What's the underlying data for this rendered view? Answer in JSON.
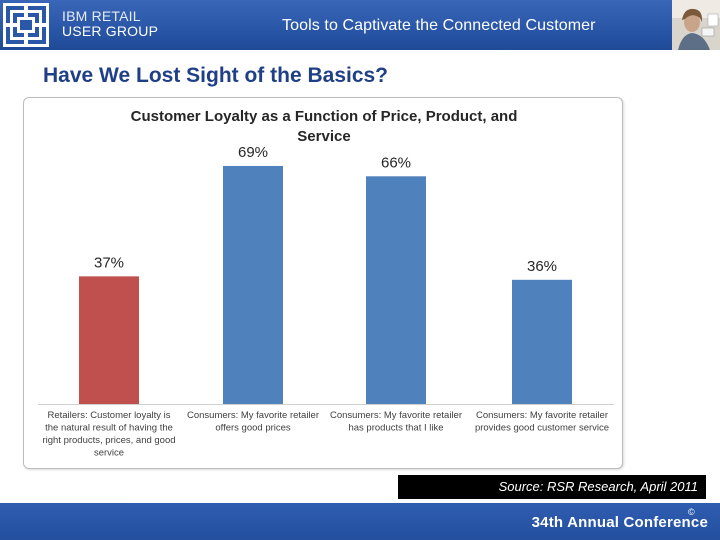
{
  "header": {
    "org_line1": "IBM RETAIL",
    "org_line2": "USER GROUP",
    "title": "Tools to Captivate the Connected Customer"
  },
  "slide": {
    "title": "Have We Lost Sight of the Basics?",
    "source": "Source: RSR Research, April 2011"
  },
  "footer": {
    "conference": "34th Annual Conference",
    "copyright_symbol": "©"
  },
  "colors": {
    "retailer_bar": "#c0504d",
    "consumer_bar": "#4f81bd",
    "title_text": "#1f3f86"
  },
  "chart_data": {
    "type": "bar",
    "title_lines": [
      "Customer Loyalty as a Function of Price, Product, and",
      "Service"
    ],
    "categories": [
      [
        "Retailers: Customer loyalty is",
        "the natural result of having the",
        "right products, prices, and good",
        "service"
      ],
      [
        "Consumers: My favorite retailer",
        "offers good prices"
      ],
      [
        "Consumers: My favorite retailer",
        "has products that I like"
      ],
      [
        "Consumers: My favorite retailer",
        "provides good customer service"
      ]
    ],
    "values": [
      37,
      69,
      66,
      36
    ],
    "value_labels": [
      "37%",
      "69%",
      "66%",
      "36%"
    ],
    "bar_colors": [
      "#c0504d",
      "#4f81bd",
      "#4f81bd",
      "#4f81bd"
    ],
    "ylim": [
      0,
      80
    ],
    "grid": false,
    "xlabel": "",
    "ylabel": ""
  }
}
